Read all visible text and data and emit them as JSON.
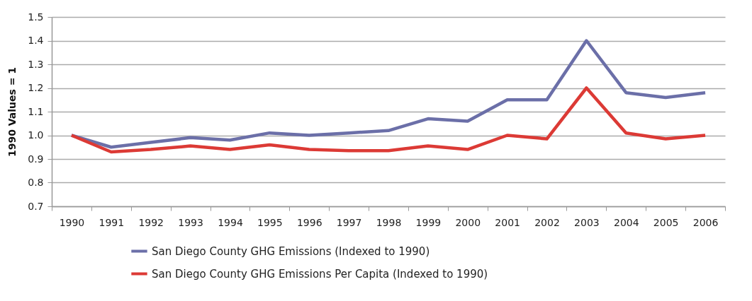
{
  "chart_data": {
    "type": "line",
    "ylabel": "1990 Values = 1",
    "categories": [
      "1990",
      "1991",
      "1992",
      "1993",
      "1994",
      "1995",
      "1996",
      "1997",
      "1998",
      "1999",
      "2000",
      "2001",
      "2002",
      "2003",
      "2004",
      "2005",
      "2006"
    ],
    "series": [
      {
        "name": "San Diego County GHG Emissions (Indexed to 1990)",
        "color": "#6b6fa8",
        "values": [
          1.0,
          0.95,
          0.97,
          0.99,
          0.98,
          1.01,
          1.0,
          1.01,
          1.02,
          1.07,
          1.06,
          1.15,
          1.15,
          1.4,
          1.18,
          1.16,
          1.18
        ]
      },
      {
        "name": "San Diego County GHG Emissions Per Capita (Indexed to 1990)",
        "color": "#dc3a35",
        "values": [
          1.0,
          0.93,
          0.94,
          0.955,
          0.94,
          0.96,
          0.94,
          0.935,
          0.935,
          0.955,
          0.94,
          1.0,
          0.985,
          1.2,
          1.01,
          0.985,
          1.0
        ]
      }
    ],
    "ylim": [
      0.7,
      1.5
    ],
    "yticks": [
      {
        "value": 0.7,
        "label": "0.7"
      },
      {
        "value": 0.8,
        "label": "0.8"
      },
      {
        "value": 0.9,
        "label": "0.9"
      },
      {
        "value": 1,
        "label": "1.0"
      },
      {
        "value": 1.1,
        "label": "1.1"
      },
      {
        "value": 1.2,
        "label": "1.2"
      },
      {
        "value": 1.3,
        "label": "1.3"
      },
      {
        "value": 1.4,
        "label": "1.4"
      },
      {
        "value": 1.5,
        "label": "1.5"
      }
    ],
    "grid": "y",
    "legend": "bottom left",
    "marker": "none",
    "line_style": "solid"
  }
}
